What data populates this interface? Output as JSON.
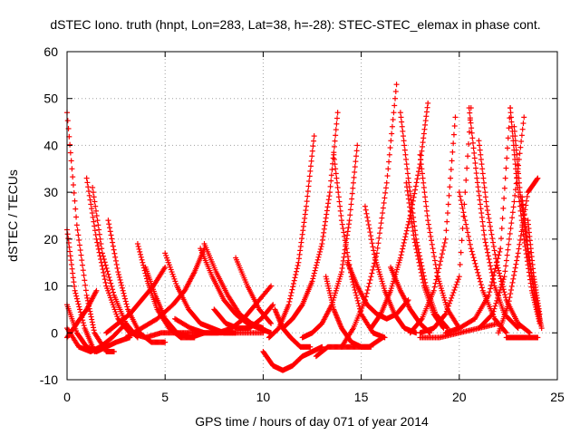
{
  "chart_data": {
    "type": "scatter",
    "title": "dSTEC Iono. truth (hnpt, Lon=283, Lat=38, h=-28): STEC-STEC_elemax in phase cont.",
    "xlabel": "GPS time / hours of day 071 of year 2014",
    "ylabel": "dSTEC  / TECUs",
    "xlim": [
      0,
      25
    ],
    "ylim": [
      -10,
      60
    ],
    "xticks": [
      0,
      5,
      10,
      15,
      20,
      25
    ],
    "yticks": [
      -10,
      0,
      10,
      20,
      30,
      40,
      50,
      60
    ],
    "xtick_labels": [
      "0",
      "5",
      "10",
      "15",
      "20",
      "25"
    ],
    "ytick_labels": [
      "-10",
      "0",
      "10",
      "20",
      "30",
      "40",
      "50",
      "60"
    ],
    "grid": true,
    "marker": "plus",
    "color": "#ff0000",
    "series": [
      {
        "x": [
          0.0,
          0.5,
          1.0,
          1.4,
          2.0,
          2.4
        ],
        "y": [
          47,
          23,
          8,
          0,
          -4,
          -4
        ]
      },
      {
        "x": [
          0.0,
          0.4,
          0.9,
          1.4,
          2.0
        ],
        "y": [
          22,
          9,
          1,
          -4,
          -3
        ]
      },
      {
        "x": [
          0.0,
          0.5,
          1.0,
          1.5,
          2.0,
          2.5,
          3.2
        ],
        "y": [
          6,
          0,
          -3,
          -4,
          -3,
          -2,
          -1
        ]
      },
      {
        "x": [
          0.0,
          0.6,
          1.2,
          1.7,
          2.3,
          3.0
        ],
        "y": [
          1,
          -3,
          -4,
          -3,
          -1,
          2
        ]
      },
      {
        "x": [
          0.0,
          0.5,
          1.0,
          1.5
        ],
        "y": [
          -1,
          2,
          5,
          9
        ]
      },
      {
        "x": [
          1.0,
          1.5,
          2.0,
          2.6,
          3.2,
          4.0
        ],
        "y": [
          33,
          20,
          10,
          3,
          0,
          -1
        ]
      },
      {
        "x": [
          1.3,
          1.8,
          2.4,
          3.0,
          3.6
        ],
        "y": [
          31,
          17,
          8,
          2,
          -1
        ]
      },
      {
        "x": [
          2.1,
          2.6,
          3.1,
          3.7,
          4.3,
          5.0
        ],
        "y": [
          24,
          13,
          5,
          0,
          -2,
          -2
        ]
      },
      {
        "x": [
          3.6,
          4.1,
          4.6,
          5.2,
          5.8,
          6.5
        ],
        "y": [
          19,
          11,
          5,
          1,
          -1,
          -1
        ]
      },
      {
        "x": [
          4.0,
          4.5,
          5.0,
          5.6,
          6.3,
          7.0
        ],
        "y": [
          14,
          8,
          3,
          0,
          -1,
          0
        ]
      },
      {
        "x": [
          2.0,
          2.6,
          3.2,
          3.8,
          4.4,
          5.0
        ],
        "y": [
          0,
          2,
          4,
          7,
          10,
          14
        ]
      },
      {
        "x": [
          5.0,
          5.6,
          6.2,
          6.8,
          7.4,
          8.0,
          8.6
        ],
        "y": [
          17,
          10,
          5,
          2,
          1,
          0,
          0
        ]
      },
      {
        "x": [
          6.8,
          7.4,
          8.0,
          8.6,
          9.2,
          9.8,
          10.4
        ],
        "y": [
          18,
          12,
          7,
          4,
          2,
          1,
          0
        ]
      },
      {
        "x": [
          7.0,
          7.6,
          8.2,
          8.8,
          9.4,
          10.0
        ],
        "y": [
          19,
          13,
          8,
          4,
          2,
          1
        ]
      },
      {
        "x": [
          3.0,
          3.8,
          4.6,
          5.4,
          6.0,
          6.5,
          7.0
        ],
        "y": [
          -1,
          1,
          3,
          6,
          9,
          13,
          18
        ]
      },
      {
        "x": [
          4.0,
          4.8,
          5.6,
          6.4,
          7.2,
          8.0,
          9.0,
          10.0
        ],
        "y": [
          -1,
          0,
          0,
          0,
          0,
          0,
          0,
          0
        ]
      },
      {
        "x": [
          5.5,
          6.3,
          7.0,
          7.7,
          8.4,
          9.0,
          9.6,
          10.4
        ],
        "y": [
          3,
          1,
          0,
          0,
          1,
          3,
          6,
          10
        ]
      },
      {
        "x": [
          8.6,
          9.2,
          9.8,
          10.4
        ],
        "y": [
          16,
          10,
          5,
          2
        ]
      },
      {
        "x": [
          7.5,
          8.1,
          8.7,
          9.3,
          9.9,
          10.5
        ],
        "y": [
          5,
          2,
          1,
          1,
          3,
          6
        ]
      },
      {
        "x": [
          10.0,
          10.5,
          11.0,
          11.5,
          12.0,
          12.5,
          13.0
        ],
        "y": [
          -4,
          -7,
          -8,
          -7,
          -5,
          -4,
          -3
        ]
      },
      {
        "x": [
          10.3,
          10.8,
          11.3,
          11.8,
          12.2,
          12.6
        ],
        "y": [
          -1,
          1,
          6,
          15,
          27,
          42
        ]
      },
      {
        "x": [
          10.6,
          11.0,
          11.4,
          11.9,
          12.4
        ],
        "y": [
          5,
          1,
          -1,
          -3,
          -3
        ]
      },
      {
        "x": [
          11.0,
          11.5,
          12.0,
          12.5,
          13.0,
          13.4,
          13.8
        ],
        "y": [
          1,
          3,
          6,
          11,
          19,
          30,
          47
        ]
      },
      {
        "x": [
          12.0,
          12.5,
          13.0,
          13.5,
          14.0,
          14.4,
          14.8
        ],
        "y": [
          -1,
          0,
          2,
          6,
          13,
          24,
          40
        ]
      },
      {
        "x": [
          12.7,
          13.3,
          14.0,
          14.7,
          15.4,
          16.1
        ],
        "y": [
          -5,
          -3,
          -3,
          -3,
          -3,
          -1
        ]
      },
      {
        "x": [
          13.2,
          13.6,
          14.0,
          14.5,
          15.0,
          15.5
        ],
        "y": [
          12,
          5,
          1,
          -2,
          -3,
          -3
        ]
      },
      {
        "x": [
          13.6,
          14.0,
          14.5,
          15.0,
          15.6,
          16.2
        ],
        "y": [
          38,
          24,
          12,
          4,
          0,
          -1
        ]
      },
      {
        "x": [
          14.3,
          14.8,
          15.3,
          15.8,
          16.3,
          16.8,
          17.4
        ],
        "y": [
          15,
          10,
          6,
          4,
          3,
          4,
          7
        ]
      },
      {
        "x": [
          14.0,
          14.6,
          15.2,
          15.8,
          16.3,
          16.8
        ],
        "y": [
          -3,
          1,
          7,
          17,
          32,
          53
        ]
      },
      {
        "x": [
          15.2,
          15.7,
          16.2,
          16.7,
          17.2,
          17.8
        ],
        "y": [
          27,
          16,
          9,
          4,
          1,
          0
        ]
      },
      {
        "x": [
          15.5,
          16.0,
          16.5,
          17.0,
          17.5,
          18.0,
          18.4
        ],
        "y": [
          1,
          4,
          9,
          16,
          25,
          36,
          49
        ]
      },
      {
        "x": [
          17.0,
          17.4,
          17.8,
          18.3,
          18.8,
          19.4
        ],
        "y": [
          47,
          33,
          20,
          10,
          4,
          1
        ]
      },
      {
        "x": [
          17.3,
          17.7,
          18.2,
          18.7,
          19.2
        ],
        "y": [
          32,
          20,
          10,
          4,
          1
        ]
      },
      {
        "x": [
          18.0,
          18.4,
          18.9,
          19.4,
          20.0
        ],
        "y": [
          38,
          24,
          12,
          5,
          1
        ]
      },
      {
        "x": [
          16.5,
          17.0,
          17.5,
          18.0,
          18.5
        ],
        "y": [
          14,
          9,
          5,
          2,
          0
        ]
      },
      {
        "x": [
          17.5,
          18.1,
          18.7,
          19.3,
          19.8
        ],
        "y": [
          0,
          3,
          9,
          20,
          46
        ]
      },
      {
        "x": [
          18.0,
          18.7,
          19.3,
          20.0,
          20.6
        ],
        "y": [
          0,
          1,
          4,
          12,
          48
        ]
      },
      {
        "x": [
          20.5,
          20.9,
          21.3,
          21.8,
          22.3,
          23.0
        ],
        "y": [
          48,
          33,
          20,
          10,
          4,
          1
        ]
      },
      {
        "x": [
          21.0,
          21.4,
          21.9,
          22.4,
          23.0,
          23.6
        ],
        "y": [
          41,
          27,
          15,
          7,
          2,
          0
        ]
      },
      {
        "x": [
          20.0,
          20.6,
          21.2,
          21.8,
          22.4
        ],
        "y": [
          30,
          18,
          9,
          3,
          0
        ]
      },
      {
        "x": [
          19.3,
          20.0,
          20.8,
          21.5,
          22.1,
          22.6
        ],
        "y": [
          0,
          1,
          3,
          8,
          18,
          48
        ]
      },
      {
        "x": [
          18.0,
          19.0,
          20.0,
          21.0,
          22.0
        ],
        "y": [
          -1,
          -1,
          0,
          1,
          2
        ]
      },
      {
        "x": [
          21.0,
          21.7,
          22.3,
          22.8,
          23.3
        ],
        "y": [
          1,
          4,
          12,
          28,
          46
        ]
      },
      {
        "x": [
          22.6,
          22.9,
          23.3,
          23.7,
          24.1
        ],
        "y": [
          48,
          34,
          20,
          9,
          2
        ]
      },
      {
        "x": [
          22.8,
          23.1,
          23.5,
          23.9,
          24.2
        ],
        "y": [
          44,
          30,
          17,
          7,
          1
        ]
      },
      {
        "x": [
          23.2,
          23.5,
          23.8,
          24.1
        ],
        "y": [
          29,
          18,
          9,
          3
        ]
      },
      {
        "x": [
          23.5,
          23.8,
          24.1
        ],
        "y": [
          24,
          12,
          4
        ]
      },
      {
        "x": [
          22.0,
          22.5,
          23.0,
          23.5,
          24.0
        ],
        "y": [
          0,
          6,
          17,
          30,
          33
        ]
      },
      {
        "x": [
          22.4,
          22.9,
          23.4,
          24.0
        ],
        "y": [
          -1,
          -1,
          -1,
          -1
        ]
      }
    ]
  }
}
